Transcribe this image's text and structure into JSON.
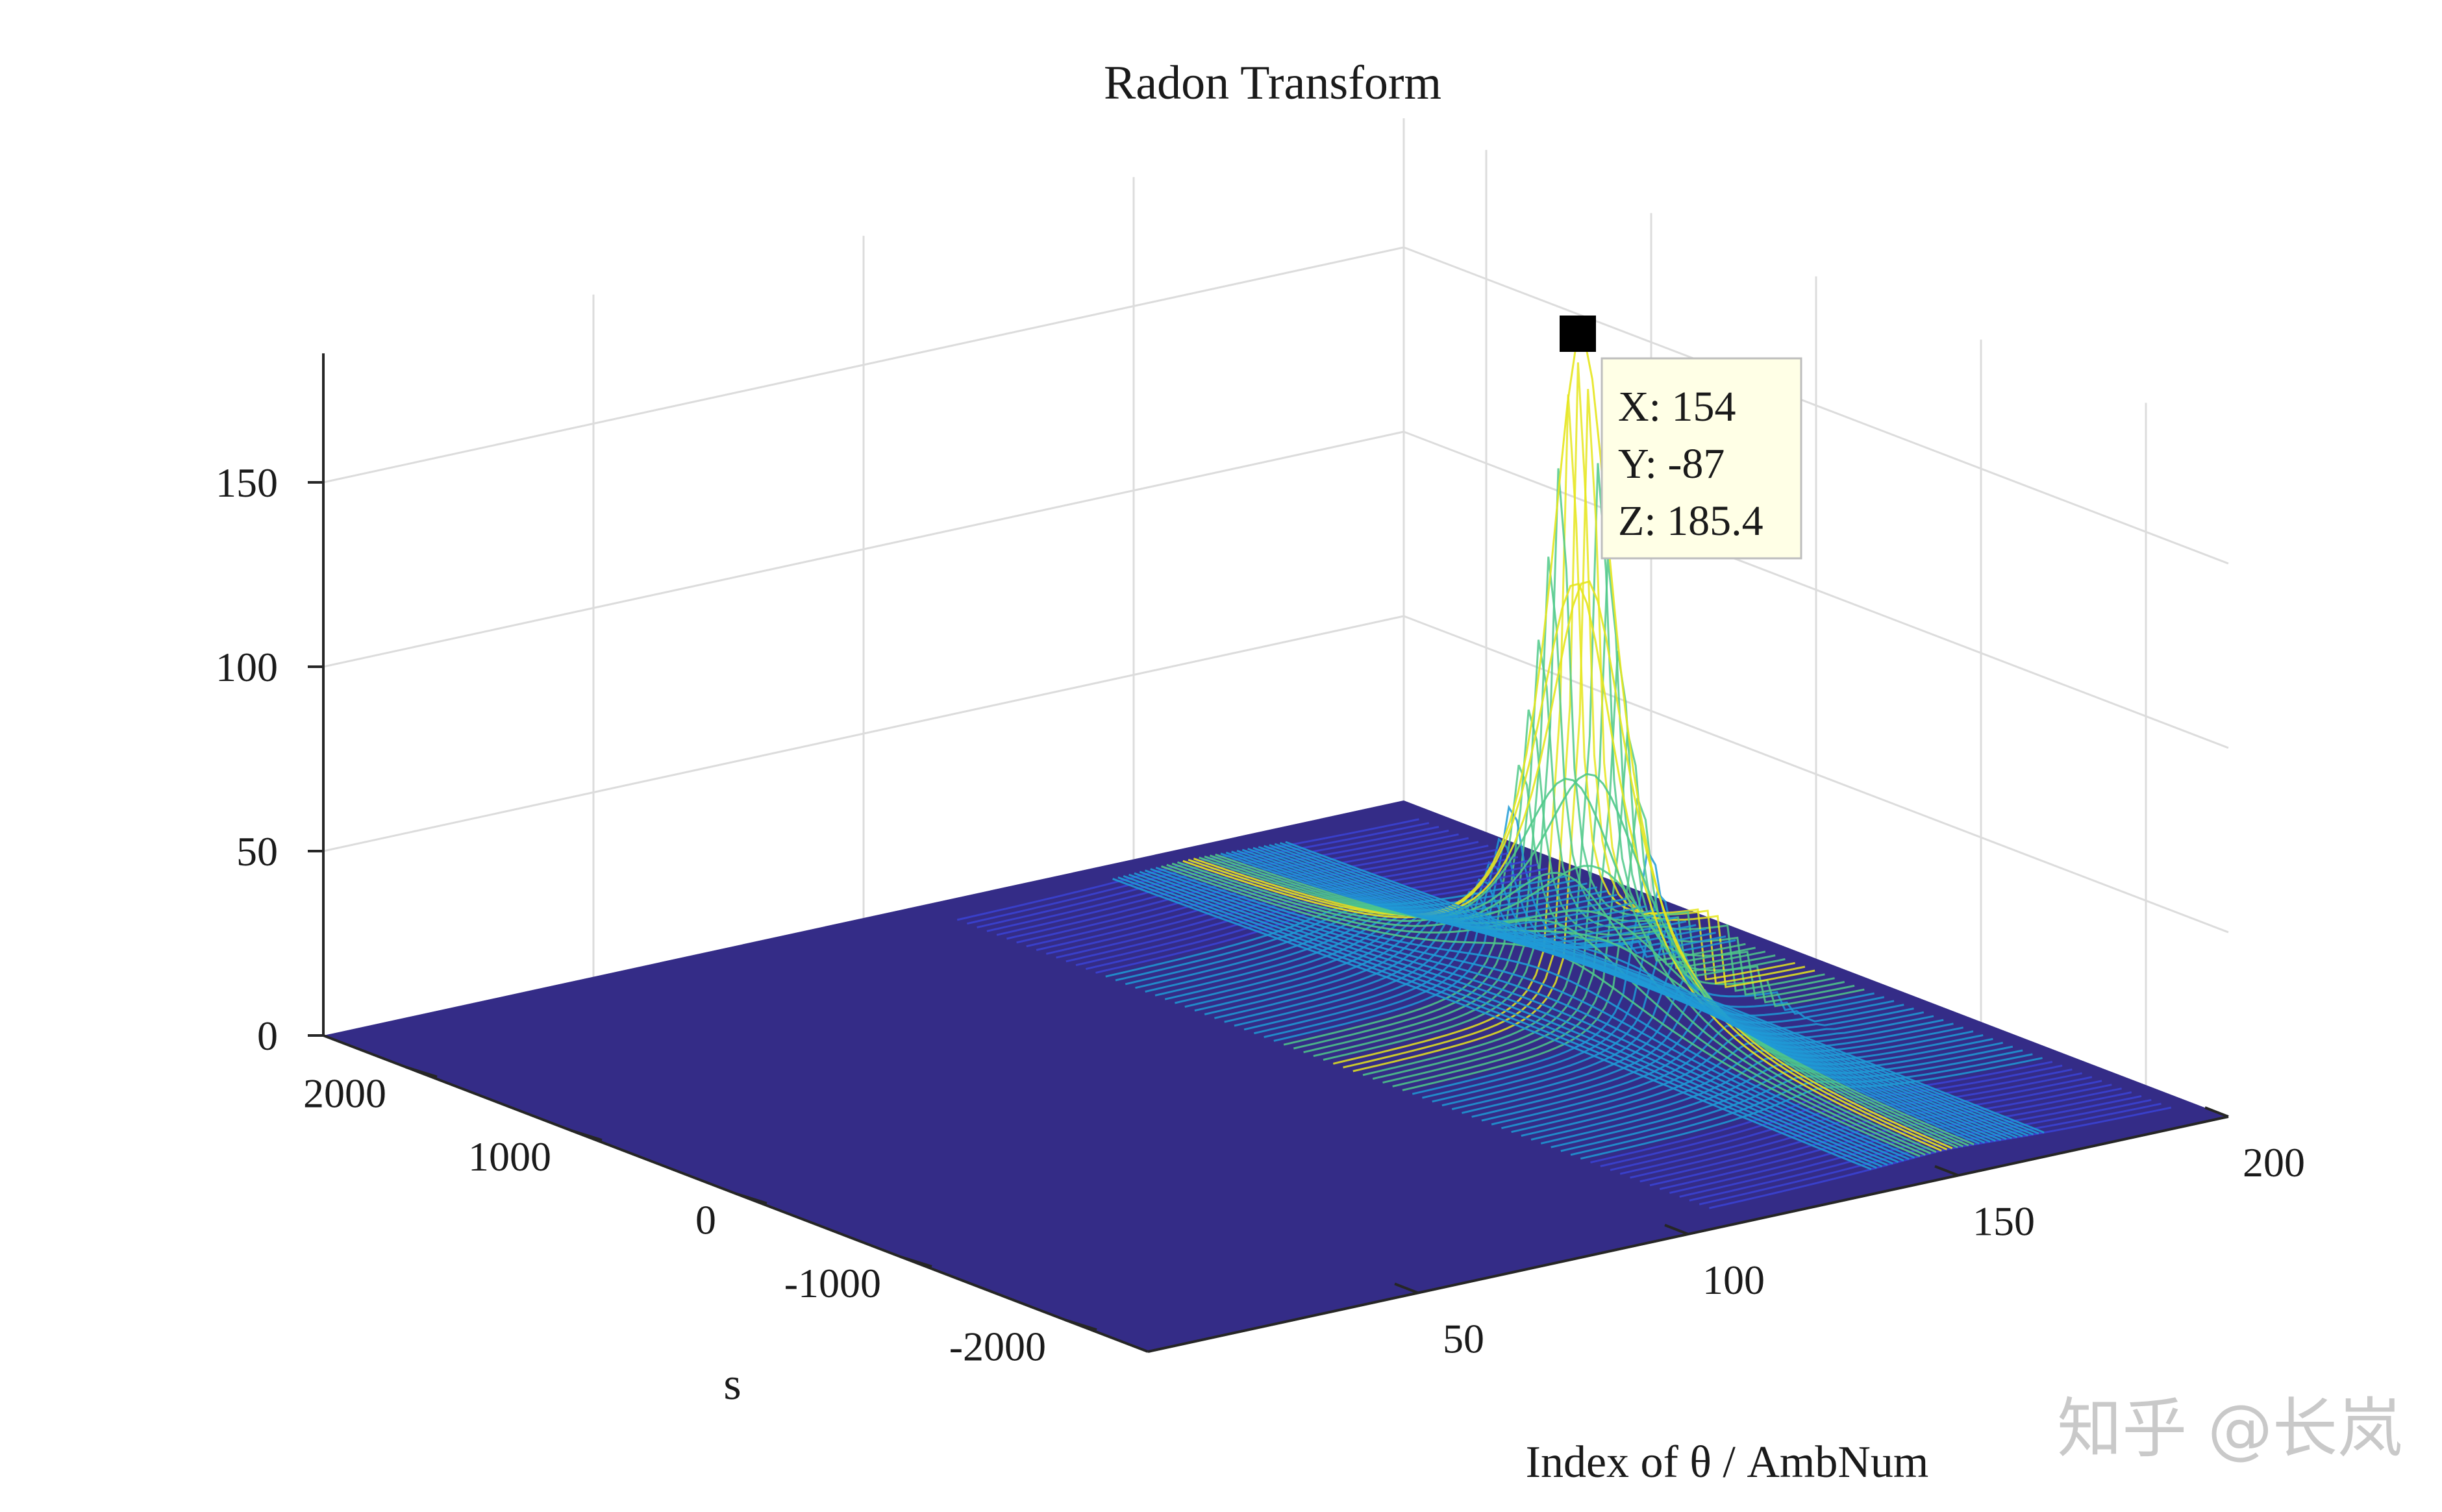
{
  "chart_data": {
    "type": "surface",
    "title": "Radon Transform",
    "xlabel": "Index of θ / AmbNum",
    "ylabel": "s",
    "zlabel": "",
    "xlim": [
      0,
      200
    ],
    "ylim": [
      -2500,
      2500
    ],
    "zlim": [
      0,
      185
    ],
    "x_ticks": [
      "50",
      "100",
      "150",
      "200"
    ],
    "y_ticks": [
      "2000",
      "1000",
      "0",
      "-1000",
      "-2000"
    ],
    "z_ticks": [
      "0",
      "50",
      "100",
      "150"
    ],
    "grid": true,
    "colormap": "parula",
    "colors": {
      "floor": "#342c87",
      "mesh_low": "#3b43d6",
      "mesh_mid": "#1f9ad6",
      "mesh_high": "#4fc98a",
      "mesh_peak": "#e6e61e"
    },
    "peak": {
      "x": 154,
      "y": -87,
      "z": 185.4
    },
    "datatip": {
      "x_text": "X: 154",
      "y_text": "Y: -87",
      "z_text": "Z: 185.4"
    }
  },
  "watermark": "知乎 @长岚"
}
